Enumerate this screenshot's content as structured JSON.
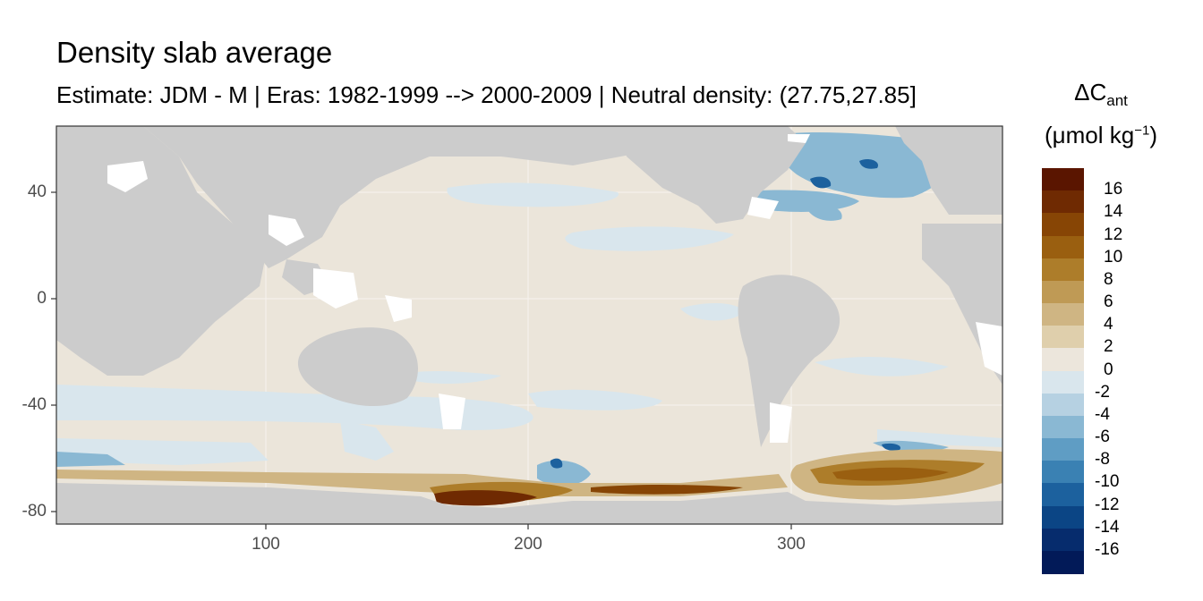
{
  "chart_data": {
    "type": "heatmap",
    "title": "Density slab average",
    "subtitle": "Estimate: JDM - M | Eras: 1982-1999 --> 2000-2009 | Neutral density: (27.75,27.85]",
    "xlim": [
      20,
      380
    ],
    "ylim": [
      -85,
      65
    ],
    "x_ticks": [
      100,
      200,
      300
    ],
    "y_ticks": [
      40,
      0,
      -40,
      -80
    ],
    "grid": true,
    "legend": {
      "position": "right",
      "title_main": "ΔC",
      "title_sub": "ant",
      "title_unit": "(μmol kg",
      "title_sup": "−1",
      "title_close": ")",
      "labels": [
        "16",
        "14",
        "12",
        "10",
        "8",
        "6",
        "4",
        "2",
        "0",
        "-2",
        "-4",
        "-6",
        "-8",
        "-10",
        "-12",
        "-14",
        "-16"
      ],
      "colors": [
        "#5a1500",
        "#6f2a02",
        "#874505",
        "#9a5f10",
        "#ad7d2a",
        "#bf9a55",
        "#cfb583",
        "#dfcfac",
        "#ece6dc",
        "#d9e6ed",
        "#b6d1e2",
        "#8ab8d3",
        "#5f9dc4",
        "#3a81b3",
        "#1c619e",
        "#0b4585",
        "#062c6d",
        "#021a58"
      ]
    },
    "land_color": "#cccccc",
    "background_value": 1
  }
}
